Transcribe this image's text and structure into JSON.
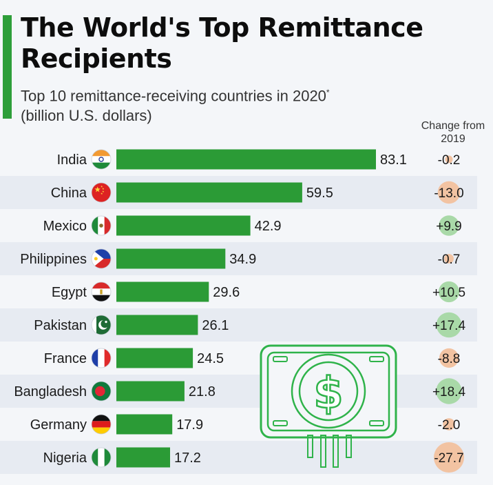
{
  "header": {
    "title": "The World's Top Remittance Recipients",
    "subtitle": "Top 10 remittance-receiving countries in 2020",
    "subtitle_mark": "*",
    "subtitle_unit": "(billion U.S. dollars)",
    "change_label": "Change from 2019"
  },
  "colors": {
    "bar": "#2b9b36",
    "accent": "#2e9e3a",
    "positive_bubble": "#a9d9a8",
    "negative_bubble": "#f2c3a2",
    "row_alt": "#e7ebf2"
  },
  "decoration": {
    "icon": "money-bill-dollar-icon"
  },
  "chart_data": {
    "type": "bar",
    "orientation": "horizontal",
    "categories": [
      "India",
      "China",
      "Mexico",
      "Philippines",
      "Egypt",
      "Pakistan",
      "France",
      "Bangladesh",
      "Germany",
      "Nigeria"
    ],
    "flags": [
      "india-flag-icon",
      "china-flag-icon",
      "mexico-flag-icon",
      "philippines-flag-icon",
      "egypt-flag-icon",
      "pakistan-flag-icon",
      "france-flag-icon",
      "bangladesh-flag-icon",
      "germany-flag-icon",
      "nigeria-flag-icon"
    ],
    "values": [
      83.1,
      59.5,
      42.9,
      34.9,
      29.6,
      26.1,
      24.5,
      21.8,
      17.9,
      17.2
    ],
    "value_labels": [
      "83.1",
      "59.5",
      "42.9",
      "34.9",
      "29.6",
      "26.1",
      "24.5",
      "21.8",
      "17.9",
      "17.2"
    ],
    "change": [
      -0.2,
      -13.0,
      9.9,
      -0.7,
      10.5,
      17.4,
      -8.8,
      18.4,
      -2.0,
      -27.7
    ],
    "change_labels": [
      "-0.2",
      "-13.0",
      "+9.9",
      "-0.7",
      "+10.5",
      "+17.4",
      "-8.8",
      "+18.4",
      "-2.0",
      "-27.7"
    ],
    "grid": false
  }
}
